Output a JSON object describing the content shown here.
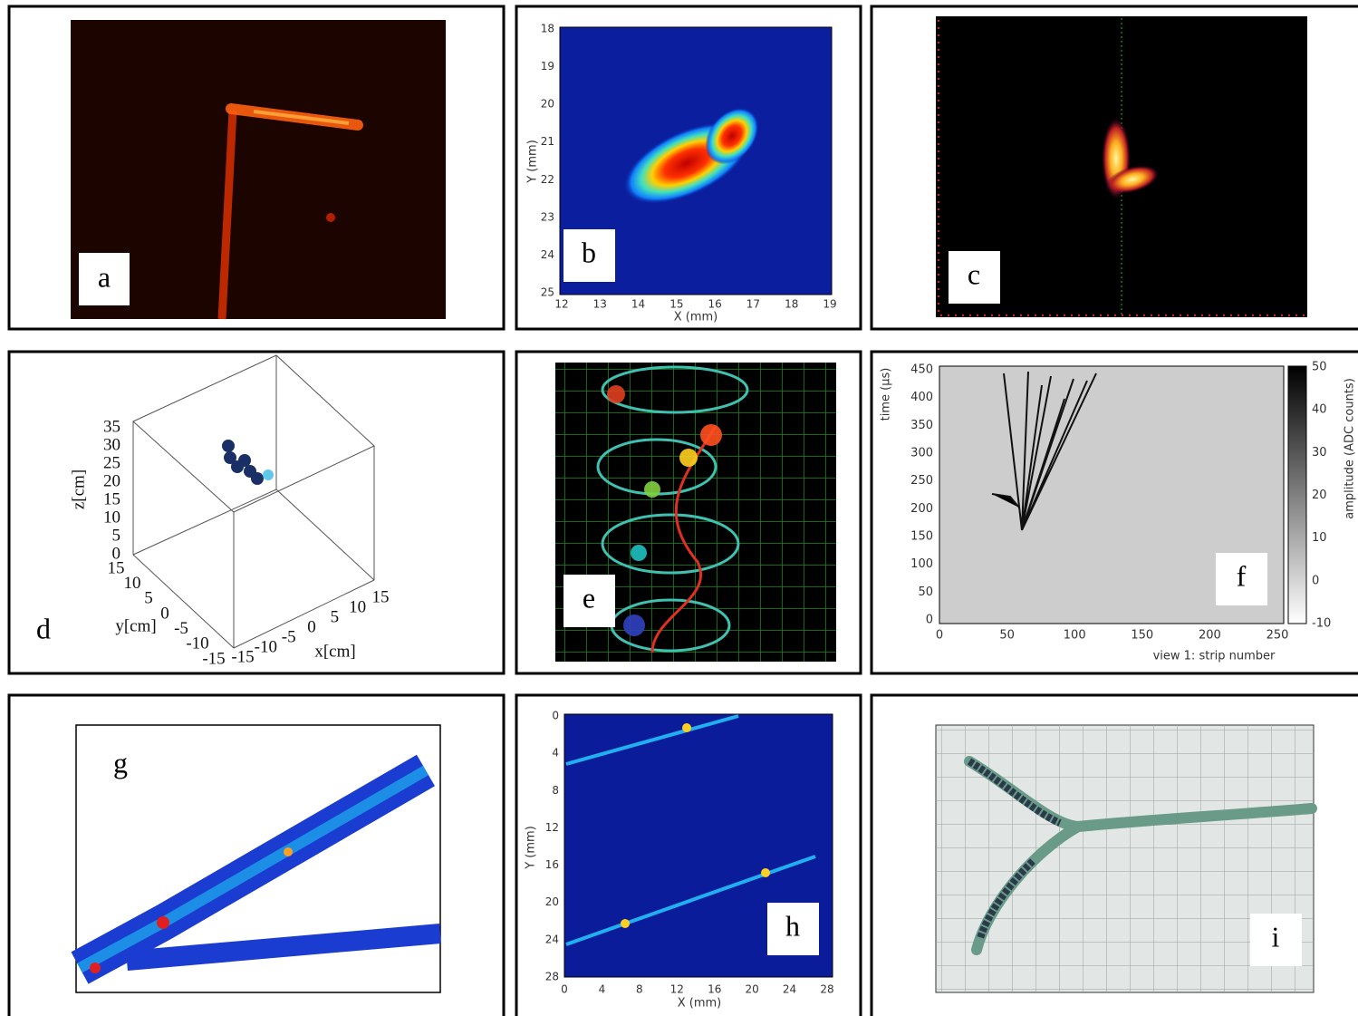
{
  "panels": [
    {
      "label": "a"
    },
    {
      "label": "b",
      "x_axis": {
        "title": "X (mm)",
        "ticks": [
          12,
          13,
          14,
          15,
          16,
          17,
          18,
          19
        ]
      },
      "y_axis": {
        "title": "Y (mm)",
        "ticks": [
          18,
          19,
          20,
          21,
          22,
          23,
          24,
          25
        ]
      }
    },
    {
      "label": "c"
    },
    {
      "label": "d",
      "x_axis": {
        "title": "x[cm]",
        "ticks": [
          -15,
          -10,
          -5,
          0,
          5,
          10,
          15
        ]
      },
      "y_axis": {
        "title": "y[cm]",
        "ticks": [
          15,
          10,
          5,
          0,
          -5,
          -10,
          -15
        ]
      },
      "z_axis": {
        "title": "z[cm]",
        "ticks": [
          0,
          5,
          10,
          15,
          20,
          25,
          30,
          35
        ]
      }
    },
    {
      "label": "e"
    },
    {
      "label": "f",
      "x_axis": {
        "title": "view 1: strip number",
        "ticks": [
          0,
          50,
          100,
          150,
          200,
          250
        ]
      },
      "y_axis": {
        "title": "time (µs)",
        "ticks": [
          0,
          50,
          100,
          150,
          200,
          250,
          300,
          350,
          400,
          450
        ]
      },
      "colorbar": {
        "title": "amplitude (ADC counts)",
        "ticks": [
          50,
          40,
          30,
          20,
          10,
          0,
          -10
        ]
      }
    },
    {
      "label": "g"
    },
    {
      "label": "h",
      "x_axis": {
        "title": "X (mm)",
        "ticks": [
          0,
          4,
          8,
          12,
          16,
          20,
          24,
          28
        ]
      },
      "y_axis": {
        "title": "Y (mm)",
        "ticks": [
          0,
          4,
          8,
          12,
          16,
          20,
          24,
          28
        ]
      }
    },
    {
      "label": "i"
    }
  ]
}
